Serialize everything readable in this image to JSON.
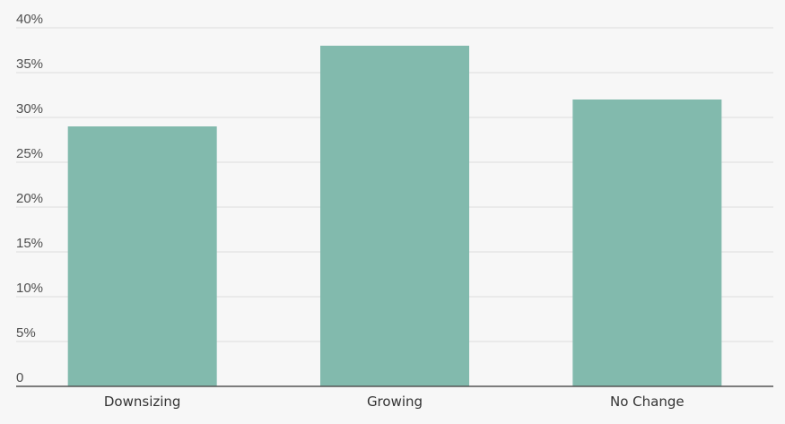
{
  "chart_data": {
    "type": "bar",
    "categories": [
      "Downsizing",
      "Growing",
      "No Change"
    ],
    "values": [
      29,
      38,
      32
    ],
    "value_unit": "%",
    "title": "",
    "xlabel": "",
    "ylabel": "",
    "ylim": [
      0,
      40
    ],
    "y_ticks": [
      "0",
      "5%",
      "10%",
      "15%",
      "20%",
      "25%",
      "30%",
      "35%",
      "40%"
    ],
    "grid": true,
    "legend": "none",
    "bar_color": "#82baad",
    "grid_color": "#e3e3e3",
    "axis_color": "#555555"
  }
}
